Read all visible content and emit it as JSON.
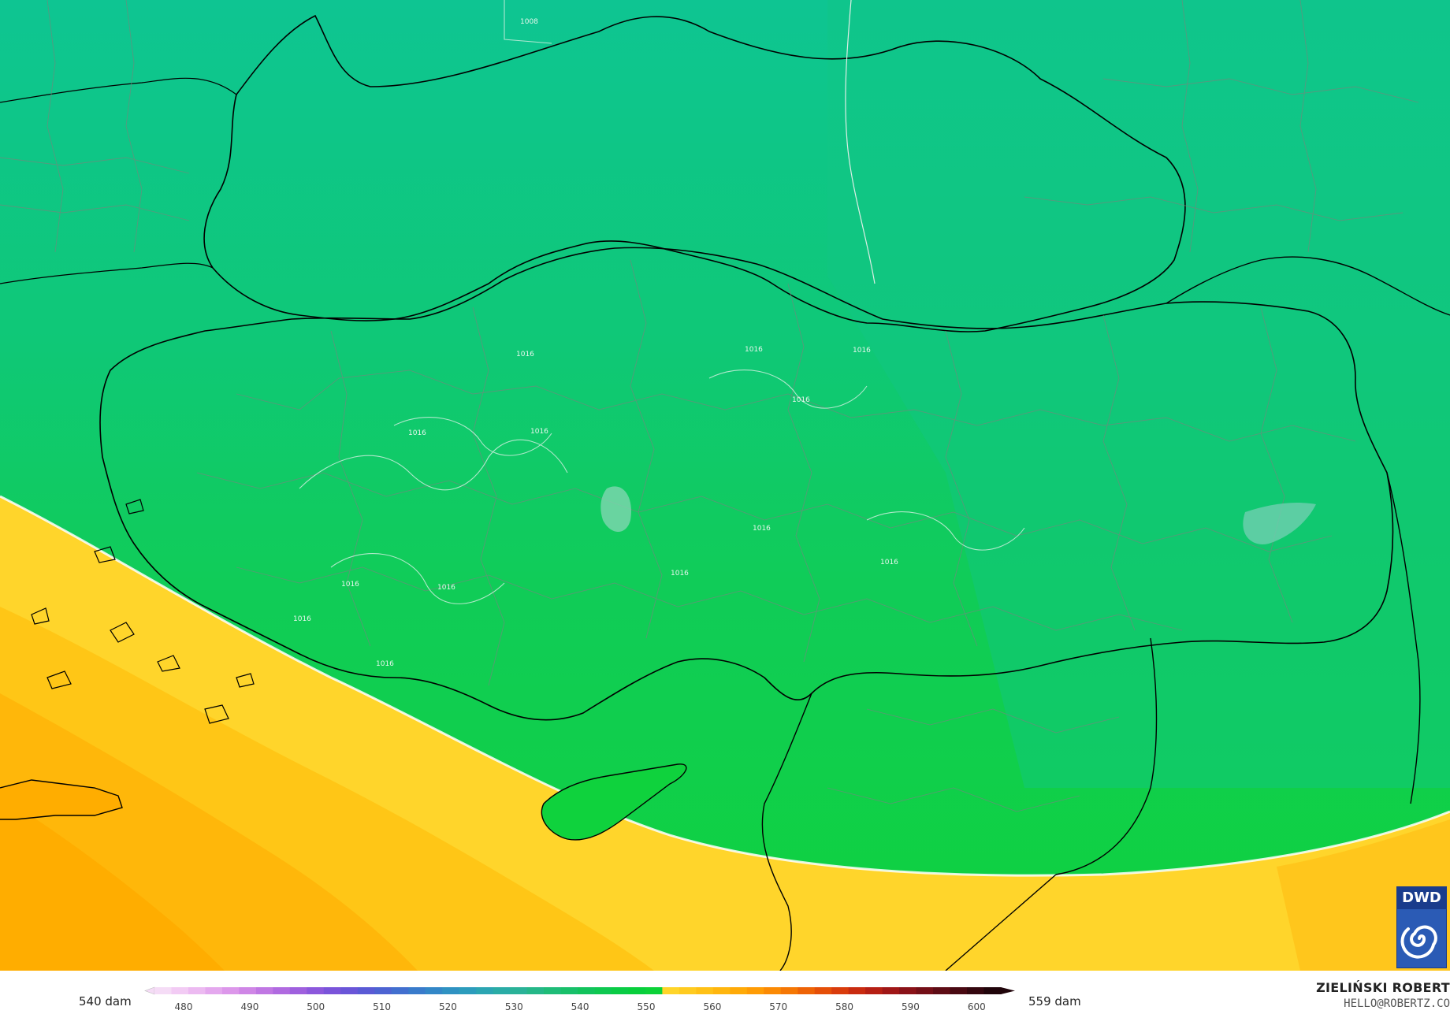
{
  "map": {
    "contour_label": "1016",
    "contour_label_north": "1008",
    "region": "Turkey and Black Sea region",
    "colors": {
      "green_north": "#0ec88f",
      "green_mid": "#12cd5e",
      "green_south": "#10d23f",
      "yellow": "#ffd52a",
      "orange": "#ffb400",
      "border_country": "#000000",
      "border_province": "#7a8a80",
      "isobar": "#d8f0e4"
    }
  },
  "legend": {
    "min_label": "540 dam",
    "max_label": "559 dam",
    "ticks": [
      "480",
      "490",
      "500",
      "510",
      "520",
      "530",
      "540",
      "550",
      "560",
      "570",
      "580",
      "590",
      "600"
    ],
    "segment_colors": [
      "#f5dcf6",
      "#f2cbf4",
      "#ecbaf1",
      "#e4a8ee",
      "#dc97ea",
      "#cf86e6",
      "#c077e3",
      "#b06ae0",
      "#9f60de",
      "#8c58dc",
      "#7a54da",
      "#6a55d8",
      "#5a5ad5",
      "#4d63d2",
      "#426fcf",
      "#397bcb",
      "#3387c7",
      "#2f92c2",
      "#2c9cbc",
      "#2ba5b2",
      "#2aaca6",
      "#2ab298",
      "#25b788",
      "#1fbc78",
      "#18c06a",
      "#12c35c",
      "#0ec850",
      "#0acc45",
      "#08cf3c",
      "#0cd238",
      "#ffd52a",
      "#ffcb20",
      "#ffc116",
      "#ffb60e",
      "#ffaa08",
      "#ff9c05",
      "#fb8a04",
      "#f57704",
      "#ee6306",
      "#e54f08",
      "#d93c0c",
      "#c92b10",
      "#b61f14",
      "#a01717",
      "#8a1218",
      "#740f17",
      "#5e0c15",
      "#490912",
      "#34070f",
      "#20040a"
    ]
  },
  "author": {
    "name": "ZIELIŃSKI ROBERT",
    "email": "HELLO@ROBERTZ.CO"
  },
  "badge": {
    "text": "DWD"
  }
}
